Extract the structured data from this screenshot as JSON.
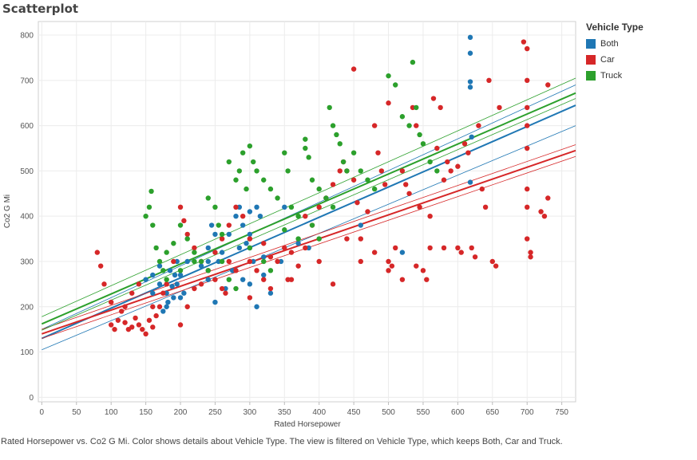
{
  "header": {
    "title": "Scatterplot"
  },
  "legend": {
    "title": "Vehicle Type",
    "items": [
      {
        "label": "Both",
        "color": "#1f77b4"
      },
      {
        "label": "Car",
        "color": "#d62728"
      },
      {
        "label": "Truck",
        "color": "#2ca02c"
      }
    ]
  },
  "caption": "Rated Horsepower vs. Co2 G Mi.  Color shows details about Vehicle Type. The view is filtered on Vehicle Type, which keeps Both, Car and Truck.",
  "chart_data": {
    "type": "scatter",
    "xlabel": "Rated Horsepower",
    "ylabel": "Co2 G Mi",
    "xlim": [
      -5,
      770
    ],
    "ylim": [
      -10,
      830
    ],
    "xticks": [
      0,
      50,
      100,
      150,
      200,
      250,
      300,
      350,
      400,
      450,
      500,
      550,
      600,
      650,
      700,
      750
    ],
    "yticks": [
      0,
      100,
      200,
      300,
      400,
      500,
      600,
      700,
      800
    ],
    "grid": true,
    "legend_position": "right",
    "series": [
      {
        "name": "Both",
        "color": "#1f77b4",
        "points": [
          [
            618,
            795
          ],
          [
            618,
            760
          ],
          [
            618,
            697
          ],
          [
            618,
            685
          ],
          [
            620,
            575
          ],
          [
            618,
            475
          ],
          [
            150,
            260
          ],
          [
            160,
            270
          ],
          [
            170,
            250
          ],
          [
            180,
            200
          ],
          [
            180,
            230
          ],
          [
            185,
            280
          ],
          [
            190,
            220
          ],
          [
            195,
            250
          ],
          [
            200,
            270
          ],
          [
            210,
            300
          ],
          [
            240,
            300
          ],
          [
            240,
            260
          ],
          [
            240,
            330
          ],
          [
            245,
            380
          ],
          [
            250,
            360
          ],
          [
            260,
            320
          ],
          [
            270,
            360
          ],
          [
            280,
            400
          ],
          [
            285,
            420
          ],
          [
            290,
            380
          ],
          [
            295,
            340
          ],
          [
            300,
            360
          ],
          [
            300,
            330
          ],
          [
            305,
            300
          ],
          [
            310,
            420
          ],
          [
            315,
            400
          ],
          [
            320,
            270
          ],
          [
            330,
            230
          ],
          [
            350,
            420
          ],
          [
            370,
            340
          ],
          [
            385,
            330
          ],
          [
            460,
            380
          ],
          [
            520,
            320
          ],
          [
            175,
            190
          ],
          [
            182,
            210
          ],
          [
            188,
            245
          ],
          [
            192,
            270
          ],
          [
            205,
            230
          ],
          [
            230,
            290
          ],
          [
            255,
            300
          ],
          [
            265,
            240
          ],
          [
            275,
            280
          ],
          [
            300,
            250
          ],
          [
            320,
            310
          ],
          [
            345,
            300
          ],
          [
            200,
            220
          ],
          [
            170,
            290
          ],
          [
            160,
            230
          ],
          [
            250,
            210
          ],
          [
            290,
            260
          ],
          [
            310,
            200
          ],
          [
            195,
            300
          ],
          [
            285,
            330
          ],
          [
            300,
            410
          ]
        ]
      },
      {
        "name": "Car",
        "color": "#d62728",
        "points": [
          [
            80,
            320
          ],
          [
            85,
            290
          ],
          [
            90,
            250
          ],
          [
            100,
            210
          ],
          [
            100,
            160
          ],
          [
            105,
            150
          ],
          [
            110,
            170
          ],
          [
            115,
            190
          ],
          [
            120,
            165
          ],
          [
            125,
            150
          ],
          [
            130,
            155
          ],
          [
            135,
            175
          ],
          [
            140,
            160
          ],
          [
            145,
            150
          ],
          [
            150,
            140
          ],
          [
            155,
            170
          ],
          [
            160,
            155
          ],
          [
            165,
            180
          ],
          [
            170,
            200
          ],
          [
            175,
            230
          ],
          [
            180,
            250
          ],
          [
            190,
            300
          ],
          [
            200,
            420
          ],
          [
            205,
            390
          ],
          [
            210,
            360
          ],
          [
            220,
            330
          ],
          [
            230,
            300
          ],
          [
            240,
            280
          ],
          [
            250,
            260
          ],
          [
            260,
            240
          ],
          [
            265,
            230
          ],
          [
            270,
            380
          ],
          [
            280,
            420
          ],
          [
            290,
            400
          ],
          [
            300,
            350
          ],
          [
            300,
            300
          ],
          [
            310,
            280
          ],
          [
            320,
            260
          ],
          [
            330,
            240
          ],
          [
            340,
            300
          ],
          [
            350,
            330
          ],
          [
            355,
            260
          ],
          [
            360,
            320
          ],
          [
            370,
            290
          ],
          [
            380,
            330
          ],
          [
            390,
            380
          ],
          [
            400,
            420
          ],
          [
            410,
            440
          ],
          [
            420,
            470
          ],
          [
            430,
            500
          ],
          [
            435,
            520
          ],
          [
            440,
            500
          ],
          [
            450,
            725
          ],
          [
            450,
            480
          ],
          [
            455,
            430
          ],
          [
            460,
            350
          ],
          [
            470,
            410
          ],
          [
            480,
            600
          ],
          [
            485,
            540
          ],
          [
            490,
            500
          ],
          [
            495,
            470
          ],
          [
            500,
            650
          ],
          [
            500,
            300
          ],
          [
            505,
            290
          ],
          [
            510,
            330
          ],
          [
            520,
            500
          ],
          [
            525,
            470
          ],
          [
            530,
            450
          ],
          [
            535,
            640
          ],
          [
            540,
            600
          ],
          [
            545,
            420
          ],
          [
            550,
            280
          ],
          [
            555,
            260
          ],
          [
            560,
            400
          ],
          [
            565,
            660
          ],
          [
            570,
            550
          ],
          [
            575,
            640
          ],
          [
            580,
            330
          ],
          [
            585,
            520
          ],
          [
            590,
            500
          ],
          [
            600,
            330
          ],
          [
            605,
            320
          ],
          [
            610,
            560
          ],
          [
            615,
            540
          ],
          [
            620,
            330
          ],
          [
            625,
            310
          ],
          [
            630,
            600
          ],
          [
            635,
            460
          ],
          [
            640,
            420
          ],
          [
            645,
            700
          ],
          [
            650,
            300
          ],
          [
            655,
            290
          ],
          [
            660,
            640
          ],
          [
            695,
            785
          ],
          [
            700,
            770
          ],
          [
            700,
            700
          ],
          [
            700,
            640
          ],
          [
            700,
            600
          ],
          [
            700,
            550
          ],
          [
            700,
            460
          ],
          [
            700,
            420
          ],
          [
            700,
            350
          ],
          [
            705,
            320
          ],
          [
            705,
            310
          ],
          [
            720,
            410
          ],
          [
            725,
            400
          ],
          [
            730,
            690
          ],
          [
            730,
            440
          ],
          [
            120,
            200
          ],
          [
            130,
            230
          ],
          [
            140,
            250
          ],
          [
            160,
            200
          ],
          [
            200,
            160
          ],
          [
            210,
            200
          ],
          [
            220,
            240
          ],
          [
            230,
            250
          ],
          [
            250,
            320
          ],
          [
            260,
            350
          ],
          [
            270,
            300
          ],
          [
            280,
            280
          ],
          [
            300,
            220
          ],
          [
            320,
            340
          ],
          [
            330,
            310
          ],
          [
            360,
            260
          ],
          [
            380,
            400
          ],
          [
            400,
            300
          ],
          [
            420,
            250
          ],
          [
            440,
            350
          ],
          [
            460,
            300
          ],
          [
            480,
            320
          ],
          [
            500,
            280
          ],
          [
            520,
            260
          ],
          [
            540,
            290
          ],
          [
            560,
            330
          ],
          [
            580,
            480
          ],
          [
            600,
            510
          ]
        ]
      },
      {
        "name": "Truck",
        "color": "#2ca02c",
        "points": [
          [
            150,
            400
          ],
          [
            155,
            420
          ],
          [
            158,
            455
          ],
          [
            160,
            380
          ],
          [
            165,
            330
          ],
          [
            170,
            300
          ],
          [
            175,
            280
          ],
          [
            180,
            320
          ],
          [
            190,
            340
          ],
          [
            200,
            380
          ],
          [
            210,
            350
          ],
          [
            220,
            320
          ],
          [
            230,
            300
          ],
          [
            240,
            440
          ],
          [
            250,
            420
          ],
          [
            255,
            380
          ],
          [
            260,
            360
          ],
          [
            270,
            520
          ],
          [
            280,
            480
          ],
          [
            285,
            500
          ],
          [
            290,
            540
          ],
          [
            295,
            460
          ],
          [
            300,
            555
          ],
          [
            305,
            520
          ],
          [
            310,
            500
          ],
          [
            320,
            480
          ],
          [
            330,
            460
          ],
          [
            340,
            440
          ],
          [
            350,
            540
          ],
          [
            355,
            500
          ],
          [
            360,
            420
          ],
          [
            370,
            400
          ],
          [
            380,
            570
          ],
          [
            380,
            550
          ],
          [
            385,
            530
          ],
          [
            390,
            480
          ],
          [
            400,
            460
          ],
          [
            410,
            440
          ],
          [
            415,
            640
          ],
          [
            420,
            600
          ],
          [
            425,
            580
          ],
          [
            430,
            560
          ],
          [
            435,
            520
          ],
          [
            440,
            500
          ],
          [
            450,
            540
          ],
          [
            460,
            500
          ],
          [
            470,
            480
          ],
          [
            480,
            460
          ],
          [
            500,
            710
          ],
          [
            510,
            690
          ],
          [
            520,
            620
          ],
          [
            530,
            600
          ],
          [
            535,
            740
          ],
          [
            540,
            640
          ],
          [
            545,
            580
          ],
          [
            550,
            560
          ],
          [
            560,
            520
          ],
          [
            570,
            500
          ],
          [
            260,
            300
          ],
          [
            270,
            260
          ],
          [
            280,
            240
          ],
          [
            300,
            330
          ],
          [
            320,
            300
          ],
          [
            330,
            280
          ],
          [
            350,
            370
          ],
          [
            370,
            350
          ],
          [
            390,
            380
          ],
          [
            400,
            350
          ],
          [
            420,
            420
          ],
          [
            180,
            260
          ],
          [
            200,
            280
          ],
          [
            220,
            300
          ],
          [
            240,
            280
          ]
        ]
      }
    ],
    "trend_lines": [
      {
        "series": "Both",
        "x": [
          0,
          770
        ],
        "y": [
          130,
          645
        ],
        "band": [
          [
            0,
            105
          ],
          [
            770,
            600
          ]
        ],
        "band_upper": [
          [
            0,
            150
          ],
          [
            770,
            690
          ]
        ]
      },
      {
        "series": "Car",
        "x": [
          0,
          770
        ],
        "y": [
          140,
          545
        ],
        "band": [
          [
            0,
            130
          ],
          [
            770,
            532
          ]
        ],
        "band_upper": [
          [
            0,
            150
          ],
          [
            770,
            558
          ]
        ]
      },
      {
        "series": "Truck",
        "x": [
          0,
          770
        ],
        "y": [
          162,
          672
        ],
        "band": [
          [
            0,
            148
          ],
          [
            770,
            660
          ]
        ],
        "band_upper": [
          [
            0,
            178
          ],
          [
            770,
            705
          ]
        ]
      }
    ]
  }
}
